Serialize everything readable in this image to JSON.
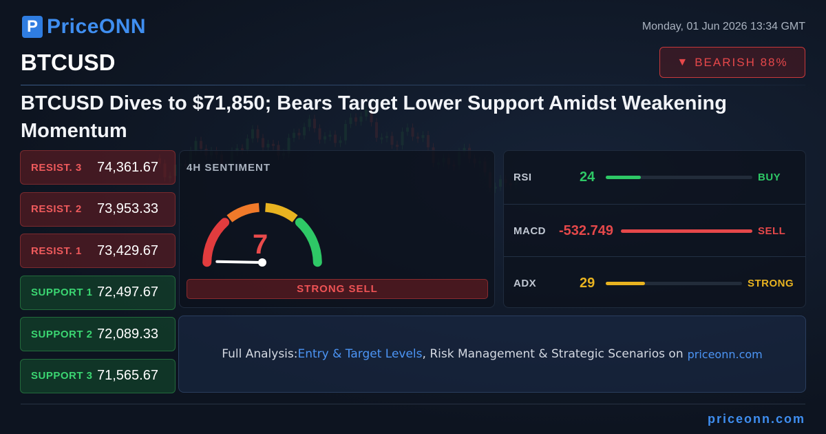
{
  "brand": {
    "logo_mark": "P",
    "name": "PriceONN"
  },
  "datetime": "Monday, 01 Jun 2026 13:34 GMT",
  "symbol": "BTCUSD",
  "bias": {
    "icon": "triangle-down-icon",
    "label": "BEARISH 88%",
    "color": "#e6484a"
  },
  "headline": "BTCUSD Dives to $71,850; Bears Target Lower Support Amidst Weakening Momentum",
  "levels": [
    {
      "label": "RESIST. 3",
      "value": "74,361.67",
      "kind": "resistance"
    },
    {
      "label": "RESIST. 2",
      "value": "73,953.33",
      "kind": "resistance"
    },
    {
      "label": "RESIST. 1",
      "value": "73,429.67",
      "kind": "resistance"
    },
    {
      "label": "SUPPORT 1",
      "value": "72,497.67",
      "kind": "support"
    },
    {
      "label": "SUPPORT 2",
      "value": "72,089.33",
      "kind": "support"
    },
    {
      "label": "SUPPORT 3",
      "value": "71,565.67",
      "kind": "support"
    }
  ],
  "sentiment": {
    "title": "4H SENTIMENT",
    "value": "7",
    "gauge_fraction": 0.07,
    "signal": "STRONG SELL"
  },
  "indicators": [
    {
      "name": "RSI",
      "value": "24",
      "fill_fraction": 0.24,
      "signal": "BUY",
      "color": "#2ec866"
    },
    {
      "name": "MACD",
      "value": "-532.749",
      "fill_fraction": 1.0,
      "signal": "SELL",
      "color": "#e5484a"
    },
    {
      "name": "ADX",
      "value": "29",
      "fill_fraction": 0.29,
      "signal": "STRONG",
      "color": "#e8b320"
    }
  ],
  "cta": {
    "prefix": "Full Analysis: ",
    "highlight": "Entry & Target Levels",
    "suffix": ", Risk Management & Strategic Scenarios on",
    "site": "priceonn.com"
  },
  "footer": {
    "site": "priceonn.com"
  },
  "colors": {
    "accent": "#3f8ef0",
    "bearish": "#e6484a",
    "bullish": "#2ec866",
    "neutral": "#e8b320"
  }
}
